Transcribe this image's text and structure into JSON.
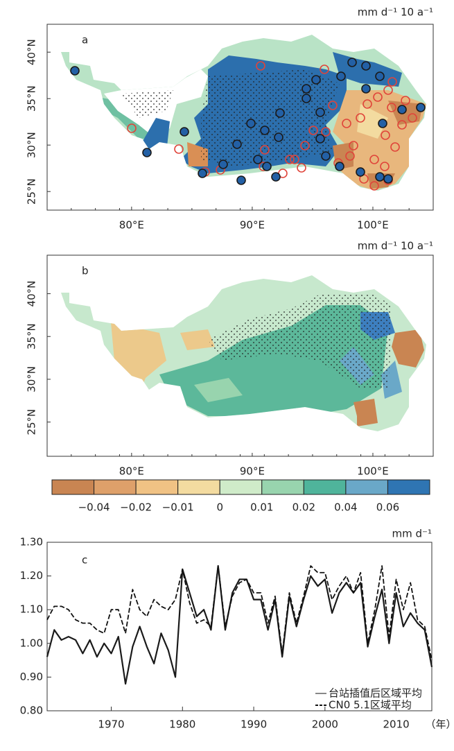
{
  "maps": [
    {
      "label": "a",
      "unit": "mm d⁻¹ 10 a⁻¹",
      "xlim": [
        73,
        105
      ],
      "ylim": [
        23,
        43
      ],
      "xticks": [
        {
          "value": 80,
          "label": "80°E"
        },
        {
          "value": 90,
          "label": "90°E"
        },
        {
          "value": 100,
          "label": "100°E"
        }
      ],
      "yticks": [
        {
          "value": 25,
          "label": "25°N"
        },
        {
          "value": 30,
          "label": "30°N"
        },
        {
          "value": 35,
          "label": "35°N"
        },
        {
          "value": 40,
          "label": "40°N"
        }
      ]
    },
    {
      "label": "b",
      "unit": "mm d⁻¹ 10 a⁻¹",
      "xlim": [
        73,
        105
      ],
      "ylim": [
        21,
        44.5
      ],
      "xticks": [
        {
          "value": 80,
          "label": "80°E"
        },
        {
          "value": 90,
          "label": "90°E"
        },
        {
          "value": 100,
          "label": "100°E"
        }
      ],
      "yticks": [
        {
          "value": 25,
          "label": "25°N"
        },
        {
          "value": 30,
          "label": "30°N"
        },
        {
          "value": 35,
          "label": "35°N"
        },
        {
          "value": 40,
          "label": "40°N"
        }
      ]
    }
  ],
  "colorbar": {
    "colors": [
      "#c98552",
      "#dea06a",
      "#f0c284",
      "#f3dba0",
      "#cfebc9",
      "#98d4ae",
      "#4fb49b",
      "#6aa8c8",
      "#2f75b3"
    ],
    "ticks": [
      {
        "value": -0.04,
        "label": "−0.04"
      },
      {
        "value": -0.02,
        "label": "−0.02"
      },
      {
        "value": -0.01,
        "label": "−0.01"
      },
      0,
      0.01,
      0.02,
      0.04,
      0.06
    ]
  },
  "chart_data": {
    "type": "line",
    "label": "c",
    "y_unit": "mm d⁻¹",
    "x_unit": "（年）",
    "x": [
      1961,
      1962,
      1963,
      1964,
      1965,
      1966,
      1967,
      1968,
      1969,
      1970,
      1971,
      1972,
      1973,
      1974,
      1975,
      1976,
      1977,
      1978,
      1979,
      1980,
      1981,
      1982,
      1983,
      1984,
      1985,
      1986,
      1987,
      1988,
      1989,
      1990,
      1991,
      1992,
      1993,
      1994,
      1995,
      1996,
      1997,
      1998,
      1999,
      2000,
      2001,
      2002,
      2003,
      2004,
      2005,
      2006,
      2007,
      2008,
      2009,
      2010,
      2011,
      2012,
      2013,
      2014,
      2015
    ],
    "xlim": [
      1961,
      2015
    ],
    "xticks": [
      1970,
      1980,
      1990,
      2000,
      2010
    ],
    "ylim": [
      0.8,
      1.3
    ],
    "yticks": [
      {
        "value": 0.8,
        "label": "0.80"
      },
      {
        "value": 0.9,
        "label": "0.90"
      },
      {
        "value": 1.0,
        "label": "1.00"
      },
      {
        "value": 1.1,
        "label": "1.10"
      },
      {
        "value": 1.2,
        "label": "1.20"
      },
      {
        "value": 1.3,
        "label": "1.30"
      }
    ],
    "legend": "lower right",
    "series": [
      {
        "name": "台站插值后区域平均",
        "color": "#1a1a1a",
        "style": "solid",
        "values": [
          0.96,
          1.04,
          1.01,
          1.02,
          1.01,
          0.97,
          1.01,
          0.96,
          1.0,
          0.97,
          1.02,
          0.88,
          0.99,
          1.05,
          0.99,
          0.94,
          1.03,
          0.98,
          0.9,
          1.22,
          1.15,
          1.08,
          1.1,
          1.04,
          1.23,
          1.04,
          1.15,
          1.19,
          1.19,
          1.13,
          1.13,
          1.04,
          1.13,
          0.96,
          1.14,
          1.05,
          1.13,
          1.2,
          1.17,
          1.19,
          1.09,
          1.15,
          1.18,
          1.15,
          1.18,
          0.99,
          1.08,
          1.16,
          1.0,
          1.15,
          1.05,
          1.09,
          1.06,
          1.04,
          0.93
        ]
      },
      {
        "name": "CN0 5.1区域平均",
        "color": "#111111",
        "style": "dashed",
        "values": [
          1.07,
          1.11,
          1.11,
          1.1,
          1.07,
          1.06,
          1.06,
          1.04,
          1.03,
          1.1,
          1.1,
          1.03,
          1.16,
          1.1,
          1.08,
          1.13,
          1.11,
          1.1,
          1.13,
          1.22,
          1.12,
          1.06,
          1.07,
          1.05,
          1.23,
          1.05,
          1.14,
          1.18,
          1.19,
          1.15,
          1.15,
          1.06,
          1.14,
          0.97,
          1.15,
          1.06,
          1.14,
          1.23,
          1.21,
          1.21,
          1.13,
          1.17,
          1.2,
          1.15,
          1.21,
          1.0,
          1.1,
          1.23,
          1.02,
          1.19,
          1.1,
          1.18,
          1.07,
          1.05,
          0.95
        ]
      }
    ]
  }
}
